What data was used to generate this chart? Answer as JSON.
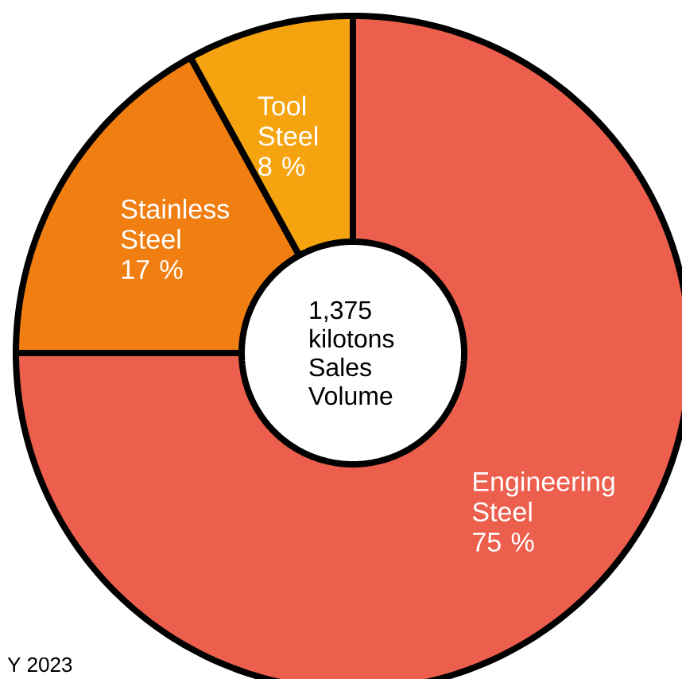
{
  "chart_data": {
    "type": "donut",
    "title": "1,375 kilotons Sales Volume",
    "categories": [
      "Engineering Steel",
      "Stainless Steel",
      "Tool Steel"
    ],
    "values": [
      75,
      17,
      8
    ],
    "colors": [
      "#ec5f4d",
      "#f07e10",
      "#f5a30f"
    ],
    "value_labels": [
      "75 %",
      "17 %",
      "8 %"
    ],
    "annotations": [
      "Y 2023"
    ]
  }
}
